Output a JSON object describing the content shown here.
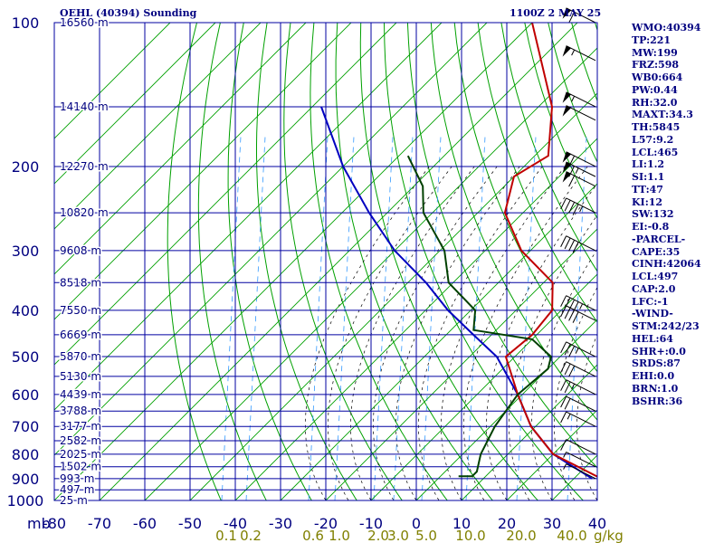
{
  "header": {
    "title": "OEHL (40394) Sounding",
    "time": "1100Z  2 MAY 25"
  },
  "indices": [
    "WMO:40394",
    "TP:221",
    "MW:199",
    "FRZ:598",
    "WB0:664",
    "PW:0.44",
    "RH:32.0",
    "MAXT:34.3",
    "TH:5845",
    "L57:9.2",
    "LCL:465",
    "LI:1.2",
    "SI:1.1",
    "TT:47",
    "KI:12",
    "SW:132",
    "EI:-0.8",
    "-PARCEL-",
    "CAPE:35",
    "CINH:42064",
    "LCL:497",
    "CAP:2.0",
    "LFC:-1",
    "-WIND-",
    "STM:242/23",
    "HEL:64",
    "SHR+:0.0",
    "SRDS:87",
    "EHI:0.0",
    "BRN:1.0",
    "BSHR:36"
  ],
  "colors": {
    "grid": "#0000a0",
    "dry_adiabat": "#00a000",
    "moist_adiabat": "#000000",
    "mixing_ratio": "#3399ff",
    "temperature": "#c00000",
    "dewpoint": "#004000",
    "parcel": "#0000c0",
    "labels": "#000080",
    "mixing_label": "#808000"
  },
  "chart_data": {
    "type": "skew-t",
    "pressure_levels": [
      100,
      200,
      300,
      400,
      500,
      600,
      700,
      800,
      900,
      1000
    ],
    "pressure_labels": [
      "100",
      "200",
      "300",
      "400",
      "500",
      "600",
      "700",
      "800",
      "900",
      "1000"
    ],
    "height_labels": [
      {
        "p": 100,
        "label": "16560 m"
      },
      {
        "p": 150,
        "label": "14140 m"
      },
      {
        "p": 200,
        "label": "12270 m"
      },
      {
        "p": 250,
        "label": "10820 m"
      },
      {
        "p": 300,
        "label": "9608 m"
      },
      {
        "p": 350,
        "label": "8518 m"
      },
      {
        "p": 400,
        "label": "7550 m"
      },
      {
        "p": 450,
        "label": "6669 m"
      },
      {
        "p": 500,
        "label": "5870 m"
      },
      {
        "p": 550,
        "label": "5130 m"
      },
      {
        "p": 600,
        "label": "4439 m"
      },
      {
        "p": 650,
        "label": "3788 m"
      },
      {
        "p": 700,
        "label": "3177 m"
      },
      {
        "p": 750,
        "label": "2582 m"
      },
      {
        "p": 800,
        "label": "2025 m"
      },
      {
        "p": 850,
        "label": "1502 m"
      },
      {
        "p": 900,
        "label": "993 m"
      },
      {
        "p": 950,
        "label": "497 m"
      },
      {
        "p": 1000,
        "label": "25 m"
      }
    ],
    "temp_axis": {
      "prefix": "mb",
      "ticks": [
        -80,
        -70,
        -60,
        -50,
        -40,
        -30,
        -20,
        -10,
        0,
        10,
        20,
        30,
        40
      ]
    },
    "mixing_ratio_labels": [
      "0.1",
      "0.2",
      "0.6",
      "1.0",
      "2.0",
      "3.0",
      "5.0",
      "10.0",
      "20.0",
      "40.0"
    ],
    "mixing_ratio_unit": "g/kg",
    "temperature_profile": [
      [
        100,
        -80
      ],
      [
        150,
        -57
      ],
      [
        190,
        -47
      ],
      [
        210,
        -50
      ],
      [
        250,
        -44
      ],
      [
        300,
        -32
      ],
      [
        350,
        -18
      ],
      [
        400,
        -12
      ],
      [
        450,
        -11
      ],
      [
        500,
        -12
      ],
      [
        600,
        -1
      ],
      [
        700,
        9
      ],
      [
        800,
        20
      ],
      [
        900,
        36
      ]
    ],
    "dewpoint_profile": [
      [
        190,
        -78
      ],
      [
        220,
        -68
      ],
      [
        250,
        -62
      ],
      [
        300,
        -49
      ],
      [
        350,
        -41
      ],
      [
        400,
        -29
      ],
      [
        440,
        -25
      ],
      [
        460,
        -10
      ],
      [
        500,
        -2
      ],
      [
        530,
        0
      ],
      [
        600,
        -1
      ],
      [
        700,
        1
      ],
      [
        800,
        4
      ],
      [
        870,
        7
      ],
      [
        890,
        7
      ],
      [
        890,
        4
      ]
    ],
    "parcel_profile": [
      [
        150,
        -108
      ],
      [
        200,
        -90
      ],
      [
        250,
        -74
      ],
      [
        300,
        -60
      ],
      [
        350,
        -46
      ],
      [
        400,
        -35
      ],
      [
        450,
        -24
      ],
      [
        500,
        -14
      ],
      [
        600,
        -1
      ],
      [
        700,
        9
      ],
      [
        800,
        20
      ],
      [
        900,
        34
      ]
    ],
    "wind_barbs": [
      {
        "p": 100,
        "dir": 260,
        "spd": 60
      },
      {
        "p": 120,
        "dir": 260,
        "spd": 55
      },
      {
        "p": 150,
        "dir": 255,
        "spd": 55
      },
      {
        "p": 160,
        "dir": 255,
        "spd": 50
      },
      {
        "p": 200,
        "dir": 250,
        "spd": 60
      },
      {
        "p": 210,
        "dir": 250,
        "spd": 65
      },
      {
        "p": 220,
        "dir": 250,
        "spd": 60
      },
      {
        "p": 250,
        "dir": 250,
        "spd": 45
      },
      {
        "p": 300,
        "dir": 250,
        "spd": 40
      },
      {
        "p": 400,
        "dir": 250,
        "spd": 45
      },
      {
        "p": 420,
        "dir": 250,
        "spd": 40
      },
      {
        "p": 500,
        "dir": 250,
        "spd": 35
      },
      {
        "p": 550,
        "dir": 250,
        "spd": 30
      },
      {
        "p": 600,
        "dir": 250,
        "spd": 25
      },
      {
        "p": 650,
        "dir": 250,
        "spd": 20
      },
      {
        "p": 700,
        "dir": 250,
        "spd": 15
      },
      {
        "p": 800,
        "dir": 250,
        "spd": 10
      },
      {
        "p": 850,
        "dir": 200,
        "spd": 5
      },
      {
        "p": 900,
        "dir": 200,
        "spd": 5
      }
    ]
  }
}
